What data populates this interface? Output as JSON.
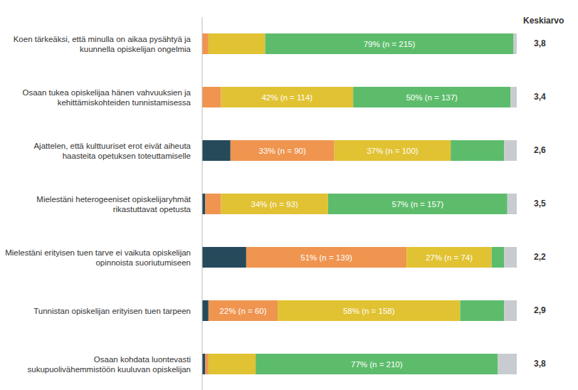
{
  "chart_data": {
    "type": "bar",
    "orientation": "horizontal",
    "stacked": true,
    "data_labels": true,
    "tick_labels": false,
    "xlim": [
      0,
      100
    ],
    "categories": [
      "Koen tärkeäksi, että minulla on aikaa pysähtyä ja kuunnella opiskelijan ongelmia",
      "Osaan tukea opiskelijaa hänen vahvuuksien ja kehittämiskohteiden tunnistamisessa",
      "Ajattelen, että kulttuuriset erot eivät aiheuta haasteita opetuksen toteuttamiselle",
      "Mielestäni heterogeeniset opiskelijaryhmät rikastuttavat opetusta",
      "Mielestäni erityisen tuen tarve ei vaikuta opiskelijan opinnoista suoriutumiseen",
      "Tunnistan opiskelijan erityisen tuen tarpeen",
      "Osaan kohdata luontevasti sukupuolivähemmistöön kuuluvan opiskelijan"
    ],
    "series": [
      {
        "color": "#264a5a",
        "values": [
          0,
          0,
          9,
          1,
          14,
          2,
          1
        ],
        "value_labels": [
          null,
          null,
          null,
          null,
          null,
          null,
          null
        ]
      },
      {
        "color": "#ef9550",
        "values": [
          2,
          6,
          33,
          5,
          51,
          22,
          1
        ],
        "value_labels": [
          null,
          null,
          "33% (n = 90)",
          null,
          "51% (n = 139)",
          "22% (n = 60)",
          null
        ]
      },
      {
        "color": "#e1c232",
        "values": [
          18,
          42,
          37,
          34,
          27,
          58,
          15
        ],
        "value_labels": [
          null,
          "42% (n = 114)",
          "37% (n = 100)",
          "34% (n = 93)",
          "27% (n = 74)",
          "58% (n = 158)",
          null
        ]
      },
      {
        "color": "#5dbc6b",
        "values": [
          79,
          50,
          17,
          57,
          4,
          14,
          77
        ],
        "value_labels": [
          "79% (n = 215)",
          "50% (n = 137)",
          null,
          "57% (n = 157)",
          null,
          null,
          "77% (n = 210)"
        ]
      },
      {
        "color": "#c8ccd1",
        "values": [
          1,
          2,
          4,
          3,
          4,
          4,
          6
        ],
        "value_labels": [
          null,
          null,
          null,
          null,
          null,
          null,
          null
        ]
      }
    ],
    "means": {
      "title": "Keskiarvo",
      "values": [
        3.8,
        3.4,
        2.6,
        3.5,
        2.2,
        2.9,
        3.8
      ],
      "value_labels": [
        "3,8",
        "3,4",
        "2,6",
        "3,5",
        "2,2",
        "2,9",
        "3,8"
      ]
    }
  }
}
